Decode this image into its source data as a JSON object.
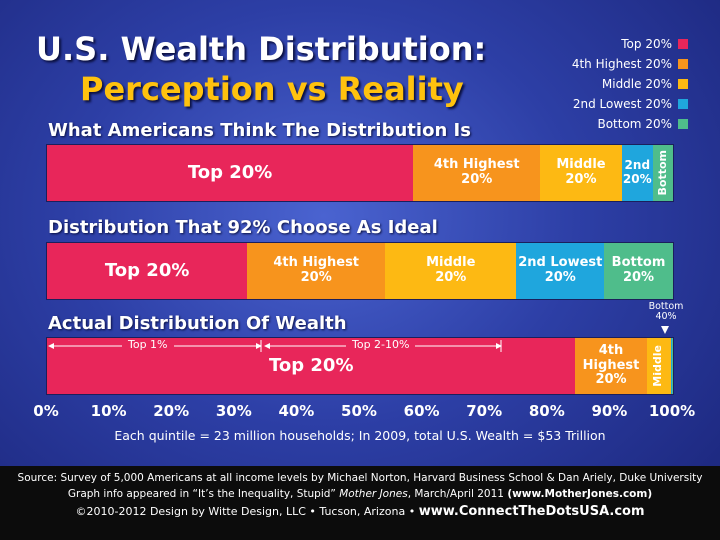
{
  "title": {
    "line1": "U.S. Wealth Distribution:",
    "line2": "Perception vs Reality"
  },
  "legend": [
    {
      "label": "Top 20%",
      "color": "#e8265a"
    },
    {
      "label": "4th Highest 20%",
      "color": "#f7941d"
    },
    {
      "label": "Middle 20%",
      "color": "#fdb913"
    },
    {
      "label": "2nd Lowest 20%",
      "color": "#1fa6dd"
    },
    {
      "label": "Bottom 20%",
      "color": "#4fbd8b"
    }
  ],
  "chart_data": {
    "type": "bar",
    "orientation": "horizontal-stacked",
    "xlim": [
      0,
      100
    ],
    "x_ticks": [
      "0%",
      "10%",
      "20%",
      "30%",
      "40%",
      "50%",
      "60%",
      "70%",
      "80%",
      "90%",
      "100%"
    ],
    "series_order": [
      "Top 20%",
      "4th Highest 20%",
      "Middle 20%",
      "2nd Lowest 20%",
      "Bottom 20%"
    ],
    "bars": [
      {
        "title": "What Americans Think The Distribution Is",
        "values": [
          58.5,
          20.3,
          13.0,
          5.0,
          3.2
        ],
        "labels": [
          "Top 20%",
          "4th Highest\n20%",
          "Middle\n20%",
          "2nd\n20%",
          "Bottom"
        ],
        "vertical_last": true
      },
      {
        "title": "Distribution That 92% Choose As Ideal",
        "values": [
          32.0,
          22.0,
          21.0,
          14.0,
          11.0
        ],
        "labels": [
          "Top 20%",
          "4th Highest\n20%",
          "Middle\n20%",
          "2nd Lowest\n20%",
          "Bottom\n20%"
        ],
        "vertical_last": false
      },
      {
        "title": "Actual Distribution Of Wealth",
        "values": [
          84.0,
          11.3,
          3.9,
          0.2,
          0.1
        ],
        "labels": [
          "Top 20%",
          "4th\nHighest\n20%",
          "Middle",
          "",
          ""
        ],
        "vertical_middle": true
      }
    ],
    "annotations": {
      "top1": "Top 1%",
      "top2_10": "Top 2-10%",
      "bottom40": "Bottom\n40%"
    }
  },
  "footnote": "Each quintile = 23 million households;  In 2009, total U.S. Wealth = $53 Trillion",
  "footer": {
    "line1": "Source:  Survey of 5,000 Americans at all income levels by Michael Norton, Harvard Business School & Dan Ariely, Duke University",
    "line2_a": "Graph info appeared in “It’s the Inequality, Stupid” ",
    "line2_b": "Mother Jones",
    "line2_c": ", March/April 2011 ",
    "line2_d": "(www.MotherJones.com)",
    "line3_a": "©2010-2012 Design by Witte Design, LLC • Tucson, Arizona  •  ",
    "line3_b": "www.ConnectTheDotsUSA.com"
  }
}
